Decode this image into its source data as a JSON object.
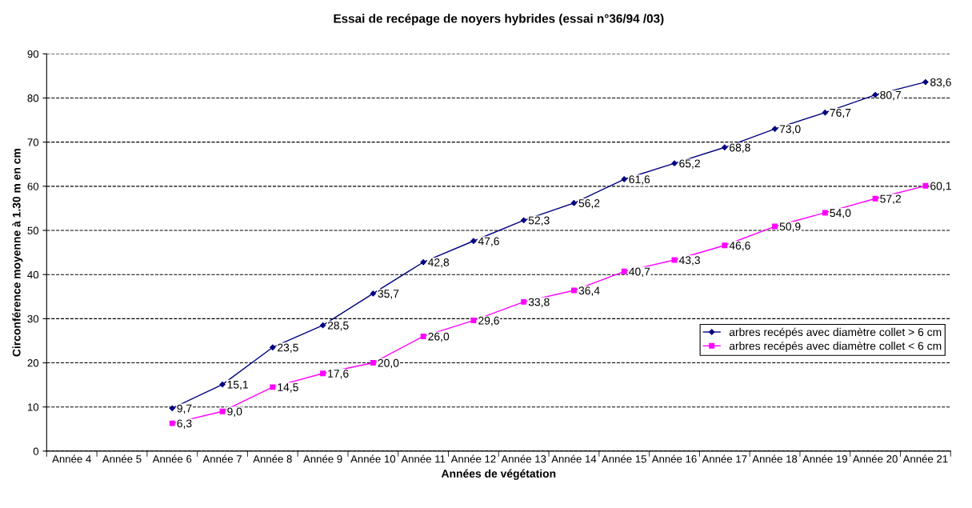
{
  "chart_data": {
    "type": "line",
    "title": "Essai de recépage de noyers hybrides (essai n°36/94 /03)",
    "xlabel": "Années de végétation",
    "ylabel": "Circonférence moyenne à 1.30 m en cm",
    "categories": [
      "Année 4",
      "Année 5",
      "Année 6",
      "Année 7",
      "Année 8",
      "Année 9",
      "Année 10",
      "Année 11",
      "Année 12",
      "Année 13",
      "Année 14",
      "Année 15",
      "Année 16",
      "Année 17",
      "Année 18",
      "Année 19",
      "Année 20",
      "Année 21"
    ],
    "series": [
      {
        "name": "arbres recépés avec diamètre collet > 6 cm",
        "color": "#000080",
        "marker": "diamond",
        "values": [
          null,
          null,
          9.7,
          15.1,
          23.5,
          28.5,
          35.7,
          42.8,
          47.6,
          52.3,
          56.2,
          61.6,
          65.2,
          68.8,
          73.0,
          76.7,
          80.7,
          83.6
        ],
        "value_labels": [
          null,
          null,
          "9,7",
          "15,1",
          "23,5",
          "28,5",
          "35,7",
          "42,8",
          "47,6",
          "52,3",
          "56,2",
          "61,6",
          "65,2",
          "68,8",
          "73,0",
          "76,7",
          "80,7",
          "83,6"
        ]
      },
      {
        "name": "arbres recépés avec diamètre collet < 6 cm",
        "color": "#ff00ff",
        "marker": "square",
        "values": [
          null,
          null,
          6.3,
          9.0,
          14.5,
          17.6,
          20.0,
          26.0,
          29.6,
          33.8,
          36.4,
          40.7,
          43.3,
          46.6,
          50.9,
          54.0,
          57.2,
          60.1
        ],
        "value_labels": [
          null,
          null,
          "6,3",
          "9,0",
          "14,5",
          "17,6",
          "20,0",
          "26,0",
          "29,6",
          "33,8",
          "36,4",
          "40,7",
          "43,3",
          "46,6",
          "50,9",
          "54,0",
          "57,2",
          "60,1"
        ]
      }
    ],
    "ylim": [
      0,
      90
    ],
    "yticks": [
      0,
      10,
      20,
      30,
      40,
      50,
      60,
      70,
      80,
      90
    ],
    "grid": "y",
    "legend": "right"
  }
}
